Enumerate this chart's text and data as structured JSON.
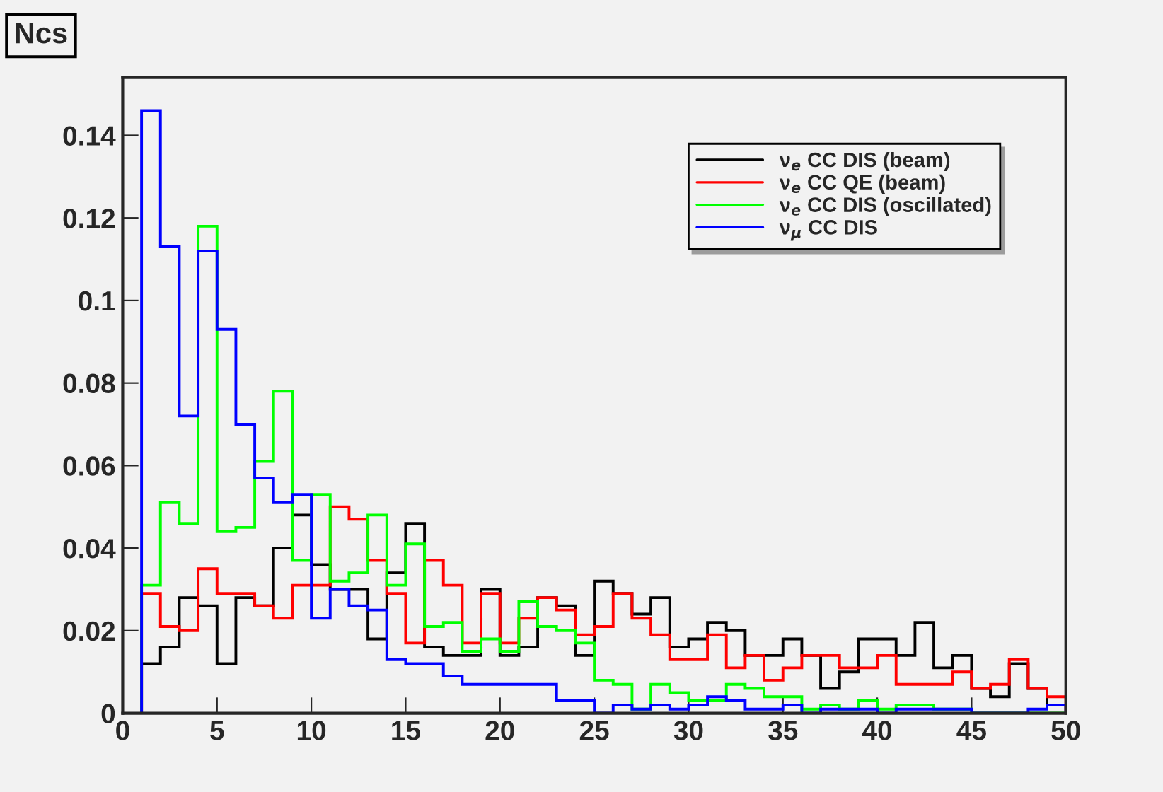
{
  "chart_data": {
    "type": "histogram",
    "title": "Ncs",
    "bins": [
      1,
      2,
      3,
      4,
      5,
      6,
      7,
      8,
      9,
      10,
      11,
      12,
      13,
      14,
      15,
      16,
      17,
      18,
      19,
      20,
      21,
      22,
      23,
      24,
      25,
      26,
      27,
      28,
      29,
      30,
      31,
      32,
      33,
      34,
      35,
      36,
      37,
      38,
      39,
      40,
      41,
      42,
      43,
      44,
      45,
      46,
      47,
      48,
      49,
      50
    ],
    "series": [
      {
        "name": "ν$_{e}$ CC DIS (beam)",
        "color": "#000000",
        "values": [
          0.012,
          0.016,
          0.028,
          0.026,
          0.012,
          0.028,
          0.026,
          0.04,
          0.048,
          0.036,
          0.03,
          0.03,
          0.018,
          0.034,
          0.046,
          0.016,
          0.014,
          0.014,
          0.03,
          0.014,
          0.016,
          0.028,
          0.026,
          0.014,
          0.032,
          0.029,
          0.024,
          0.028,
          0.016,
          0.018,
          0.022,
          0.02,
          0.014,
          0.014,
          0.018,
          0.014,
          0.006,
          0.01,
          0.018,
          0.018,
          0.014,
          0.022,
          0.011,
          0.014,
          0.006,
          0.004,
          0.012,
          0.006,
          0.002
        ]
      },
      {
        "name": "ν$_{e}$ CC QE (beam)",
        "color": "#ff0000",
        "values": [
          0.029,
          0.021,
          0.02,
          0.035,
          0.029,
          0.029,
          0.026,
          0.023,
          0.031,
          0.031,
          0.05,
          0.047,
          0.037,
          0.029,
          0.017,
          0.037,
          0.031,
          0.017,
          0.029,
          0.017,
          0.023,
          0.028,
          0.025,
          0.019,
          0.021,
          0.029,
          0.023,
          0.019,
          0.013,
          0.013,
          0.019,
          0.011,
          0.014,
          0.008,
          0.011,
          0.014,
          0.014,
          0.011,
          0.011,
          0.014,
          0.007,
          0.007,
          0.007,
          0.01,
          0.006,
          0.007,
          0.013,
          0.006,
          0.004
        ]
      },
      {
        "name": "ν$_{e}$ CC DIS (oscillated)",
        "color": "#00ff00",
        "values": [
          0.031,
          0.051,
          0.046,
          0.118,
          0.044,
          0.045,
          0.061,
          0.078,
          0.037,
          0.053,
          0.032,
          0.034,
          0.048,
          0.031,
          0.041,
          0.021,
          0.022,
          0.015,
          0.018,
          0.015,
          0.027,
          0.021,
          0.02,
          0.017,
          0.008,
          0.007,
          0.001,
          0.007,
          0.005,
          0.003,
          0.003,
          0.007,
          0.006,
          0.004,
          0.004,
          0.001,
          0.002,
          0.001,
          0.003,
          0.001,
          0.002,
          0.002,
          0.001,
          0.001,
          0.0,
          0.0,
          0.0,
          0.0,
          0.0
        ]
      },
      {
        "name": "ν$_{μ}$ CC DIS",
        "color": "#0000ff",
        "values": [
          0.146,
          0.113,
          0.072,
          0.112,
          0.093,
          0.07,
          0.057,
          0.051,
          0.053,
          0.023,
          0.03,
          0.026,
          0.025,
          0.013,
          0.012,
          0.012,
          0.009,
          0.007,
          0.007,
          0.007,
          0.007,
          0.007,
          0.003,
          0.003,
          0.0,
          0.002,
          0.001,
          0.002,
          0.001,
          0.002,
          0.004,
          0.003,
          0.001,
          0.001,
          0.002,
          0.0,
          0.001,
          0.001,
          0.001,
          0.0,
          0.001,
          0.001,
          0.001,
          0.001,
          0.0,
          0.0,
          0.0,
          0.001,
          0.002
        ]
      }
    ],
    "xlim": [
      0,
      50
    ],
    "xticks": [
      0,
      5,
      10,
      15,
      20,
      25,
      30,
      35,
      40,
      45,
      50
    ],
    "ylim": [
      0,
      0.154
    ],
    "yticks": [
      0,
      0.02,
      0.04,
      0.06,
      0.08,
      0.1,
      0.12,
      0.14
    ],
    "grid": false,
    "legend": "top right"
  }
}
